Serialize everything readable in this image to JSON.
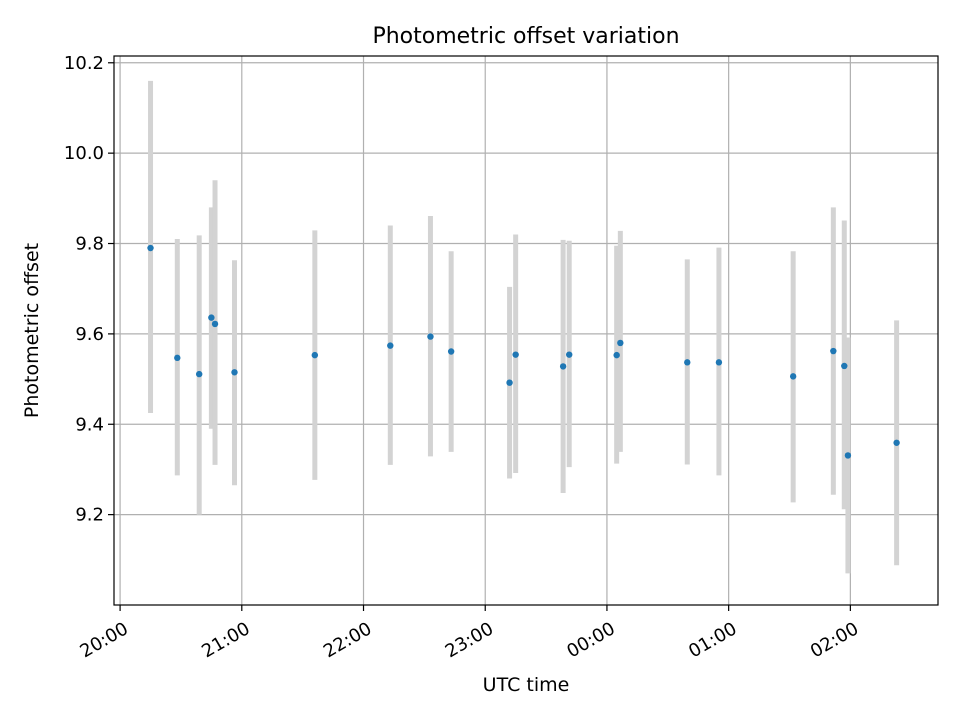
{
  "chart_data": {
    "type": "scatter",
    "title": "Photometric offset variation",
    "xlabel": "UTC time",
    "ylabel": "Photometric offset",
    "x_unit": "hours since 20:00 UTC",
    "xlim": [
      -0.05,
      6.72
    ],
    "ylim": [
      9.0,
      10.215
    ],
    "x_ticks": [
      {
        "value": 0,
        "label": "20:00"
      },
      {
        "value": 1,
        "label": "21:00"
      },
      {
        "value": 2,
        "label": "22:00"
      },
      {
        "value": 3,
        "label": "23:00"
      },
      {
        "value": 4,
        "label": "00:00"
      },
      {
        "value": 5,
        "label": "01:00"
      },
      {
        "value": 6,
        "label": "02:00"
      }
    ],
    "y_ticks": [
      {
        "value": 9.2,
        "label": "9.2"
      },
      {
        "value": 9.4,
        "label": "9.4"
      },
      {
        "value": 9.6,
        "label": "9.6"
      },
      {
        "value": 9.8,
        "label": "9.8"
      },
      {
        "value": 10.0,
        "label": "10.0"
      },
      {
        "value": 10.2,
        "label": "10.2"
      }
    ],
    "grid": true,
    "colors": {
      "point": "#1f77b4",
      "errorbar": "#d3d3d3",
      "grid": "#b0b0b0"
    },
    "points": [
      {
        "x": 0.25,
        "y": 9.79,
        "err_low": 9.425,
        "err_high": 10.16
      },
      {
        "x": 0.47,
        "y": 9.547,
        "err_low": 9.287,
        "err_high": 9.81
      },
      {
        "x": 0.65,
        "y": 9.511,
        "err_low": 9.2,
        "err_high": 9.818
      },
      {
        "x": 0.75,
        "y": 9.636,
        "err_low": 9.39,
        "err_high": 9.88
      },
      {
        "x": 0.78,
        "y": 9.622,
        "err_low": 9.31,
        "err_high": 9.94
      },
      {
        "x": 0.94,
        "y": 9.515,
        "err_low": 9.265,
        "err_high": 9.763
      },
      {
        "x": 1.6,
        "y": 9.553,
        "err_low": 9.277,
        "err_high": 9.829
      },
      {
        "x": 2.22,
        "y": 9.574,
        "err_low": 9.31,
        "err_high": 9.84
      },
      {
        "x": 2.55,
        "y": 9.594,
        "err_low": 9.329,
        "err_high": 9.861
      },
      {
        "x": 2.72,
        "y": 9.561,
        "err_low": 9.339,
        "err_high": 9.783
      },
      {
        "x": 3.2,
        "y": 9.492,
        "err_low": 9.28,
        "err_high": 9.704
      },
      {
        "x": 3.25,
        "y": 9.554,
        "err_low": 9.292,
        "err_high": 9.82
      },
      {
        "x": 3.64,
        "y": 9.528,
        "err_low": 9.248,
        "err_high": 9.808
      },
      {
        "x": 3.69,
        "y": 9.554,
        "err_low": 9.305,
        "err_high": 9.806
      },
      {
        "x": 4.08,
        "y": 9.553,
        "err_low": 9.313,
        "err_high": 9.795
      },
      {
        "x": 4.11,
        "y": 9.58,
        "err_low": 9.339,
        "err_high": 9.828
      },
      {
        "x": 4.66,
        "y": 9.537,
        "err_low": 9.311,
        "err_high": 9.765
      },
      {
        "x": 4.92,
        "y": 9.537,
        "err_low": 9.287,
        "err_high": 9.791
      },
      {
        "x": 5.53,
        "y": 9.506,
        "err_low": 9.227,
        "err_high": 9.783
      },
      {
        "x": 5.86,
        "y": 9.562,
        "err_low": 9.244,
        "err_high": 9.88
      },
      {
        "x": 5.95,
        "y": 9.529,
        "err_low": 9.212,
        "err_high": 9.851
      },
      {
        "x": 5.98,
        "y": 9.331,
        "err_low": 9.07,
        "err_high": 9.592
      },
      {
        "x": 6.38,
        "y": 9.359,
        "err_low": 9.088,
        "err_high": 9.63
      }
    ]
  }
}
